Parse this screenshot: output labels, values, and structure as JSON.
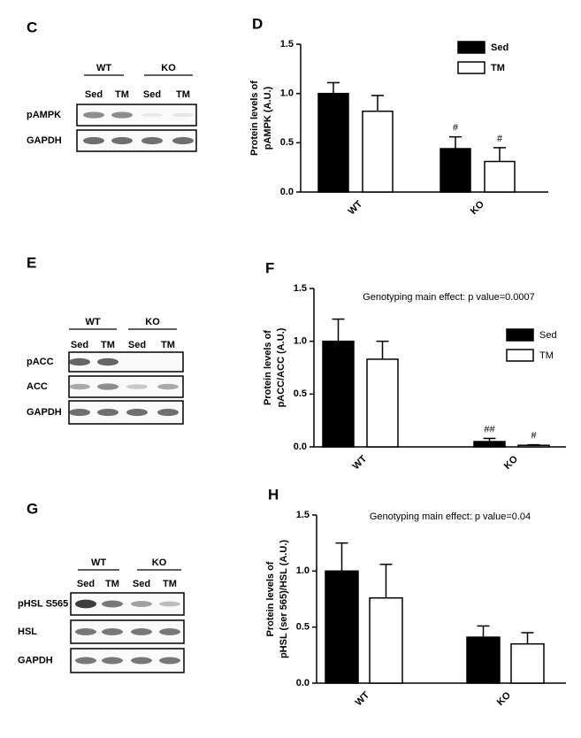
{
  "blots": [
    {
      "panel": "C",
      "groups": [
        "WT",
        "KO"
      ],
      "lanes": [
        "Sed",
        "TM",
        "Sed",
        "TM"
      ],
      "rows": [
        "pAMPK",
        "GAPDH"
      ]
    },
    {
      "panel": "E",
      "groups": [
        "WT",
        "KO"
      ],
      "lanes": [
        "Sed",
        "TM",
        "Sed",
        "TM"
      ],
      "rows": [
        "pACC",
        "ACC",
        "GAPDH"
      ]
    },
    {
      "panel": "G",
      "groups": [
        "WT",
        "KO"
      ],
      "lanes": [
        "Sed",
        "TM",
        "Sed",
        "TM"
      ],
      "rows": [
        "pHSL S565",
        "HSL",
        "GAPDH"
      ]
    }
  ],
  "chart_data": [
    {
      "type": "bar",
      "panel": "D",
      "ylabel": [
        "Protein levels of",
        "pAMPK (A.U.)"
      ],
      "categories": [
        "WT",
        "KO"
      ],
      "series": [
        {
          "name": "Sed",
          "color": "#000000",
          "values": [
            1.0,
            0.44
          ],
          "errors": [
            0.11,
            0.12
          ],
          "annotations": [
            null,
            "#"
          ]
        },
        {
          "name": "TM",
          "color": "#ffffff",
          "values": [
            0.82,
            0.31
          ],
          "errors": [
            0.16,
            0.14
          ],
          "annotations": [
            null,
            "#"
          ]
        }
      ],
      "ylim": [
        0,
        1.5
      ],
      "yticks": [
        {
          "value": 0,
          "label": "0.0"
        },
        {
          "value": 0.5,
          "label": "0.5"
        },
        {
          "value": 1,
          "label": "1.0"
        },
        {
          "value": 1.5,
          "label": "1.5"
        }
      ],
      "legend": "upper right"
    },
    {
      "type": "bar",
      "panel": "F",
      "note": "Genotyping main effect: p value=0.0007",
      "ylabel": [
        "Protein levels of",
        "pACC/ACC (A.U.)"
      ],
      "categories": [
        "WT",
        "KO"
      ],
      "series": [
        {
          "name": "Sed",
          "color": "#000000",
          "values": [
            1.0,
            0.05
          ],
          "errors": [
            0.21,
            0.03
          ],
          "annotations": [
            null,
            "##"
          ]
        },
        {
          "name": "TM",
          "color": "#ffffff",
          "values": [
            0.83,
            0.015
          ],
          "errors": [
            0.17,
            0.005
          ],
          "annotations": [
            null,
            "#"
          ]
        }
      ],
      "ylim": [
        0,
        1.5
      ],
      "yticks": [
        {
          "value": 0,
          "label": "0.0"
        },
        {
          "value": 0.5,
          "label": "0.5"
        },
        {
          "value": 1,
          "label": "1.0"
        },
        {
          "value": 1.5,
          "label": "1.5"
        }
      ],
      "legend": "upper right"
    },
    {
      "type": "bar",
      "panel": "H",
      "note": "Genotyping main effect: p value=0.04",
      "ylabel": [
        "Protein levels of",
        "pHSL (ser 565)/HSL (A.U.)"
      ],
      "categories": [
        "WT",
        "KO"
      ],
      "series": [
        {
          "name": "Sed",
          "color": "#000000",
          "values": [
            1.0,
            0.41
          ],
          "errors": [
            0.25,
            0.1
          ]
        },
        {
          "name": "TM",
          "color": "#ffffff",
          "values": [
            0.76,
            0.35
          ],
          "errors": [
            0.3,
            0.1
          ]
        }
      ],
      "ylim": [
        0,
        1.5
      ],
      "yticks": [
        {
          "value": 0,
          "label": "0.0"
        },
        {
          "value": 0.5,
          "label": "0.5"
        },
        {
          "value": 1,
          "label": "1.0"
        },
        {
          "value": 1.5,
          "label": "1.5"
        }
      ]
    }
  ]
}
